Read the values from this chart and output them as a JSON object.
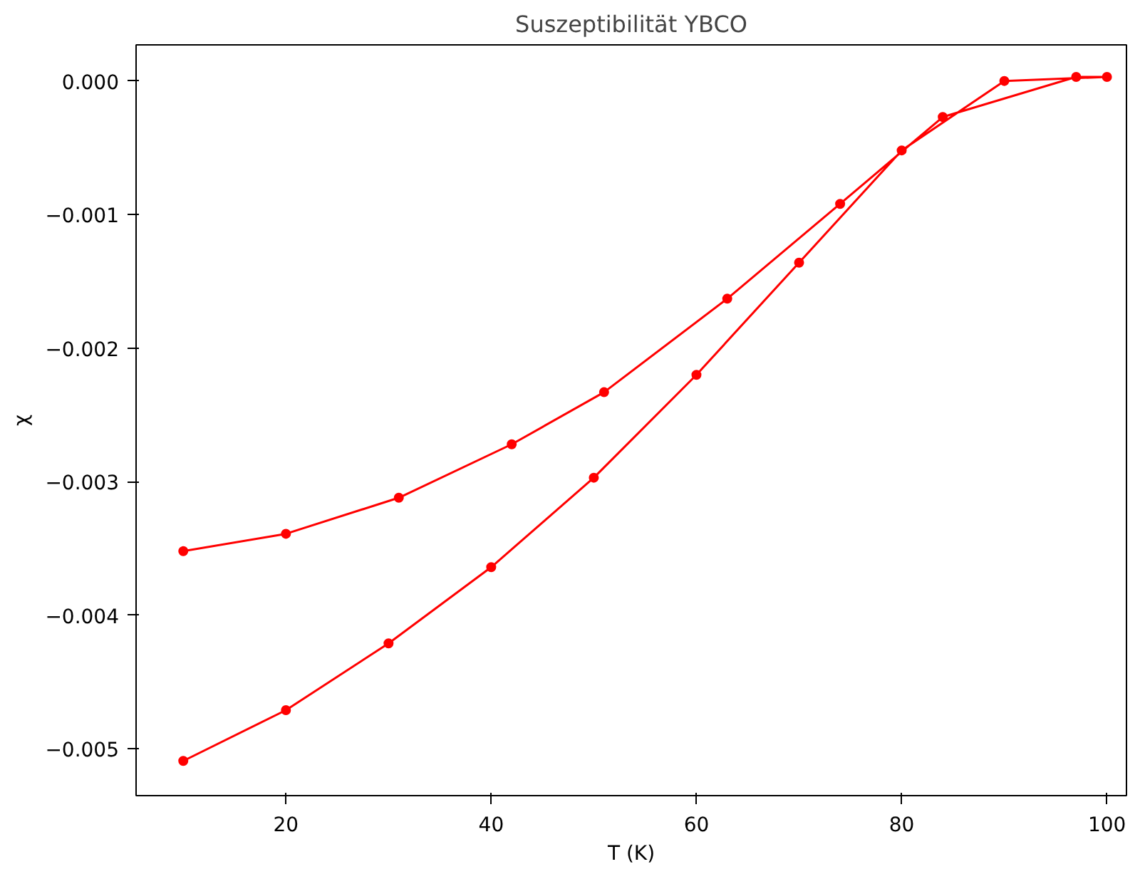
{
  "chart_data": {
    "type": "line",
    "title": "Suszeptibilität YBCO",
    "xlabel": "T (K)",
    "ylabel": "χ",
    "series": [
      {
        "color": "#ff0000",
        "x": [
          10,
          20,
          30,
          40,
          50,
          60,
          70,
          80,
          90,
          100,
          97,
          84,
          74,
          63,
          51,
          42,
          31,
          20,
          10
        ],
        "values": [
          -0.00509,
          -0.00471,
          -0.00421,
          -0.00364,
          -0.00297,
          -0.0022,
          -0.00136,
          -0.00052,
          0.0,
          3e-05,
          3e-05,
          -0.00027,
          -0.00092,
          -0.00163,
          -0.00233,
          -0.00272,
          -0.00312,
          -0.00339,
          -0.00352
        ]
      }
    ],
    "xlim": [
      5.4,
      101.9
    ],
    "ylim": [
      -0.00535,
      0.00027
    ],
    "xticks": [
      20,
      40,
      60,
      80,
      100
    ],
    "yticks": [
      {
        "value": 0,
        "label": "0.000"
      },
      {
        "value": -0.001,
        "label": "−0.001"
      },
      {
        "value": -0.002,
        "label": "−0.002"
      },
      {
        "value": -0.003,
        "label": "−0.003"
      },
      {
        "value": -0.004,
        "label": "−0.004"
      },
      {
        "value": -0.005,
        "label": "−0.005"
      }
    ],
    "grid": false,
    "marker": "circle",
    "line_style": "solid"
  }
}
